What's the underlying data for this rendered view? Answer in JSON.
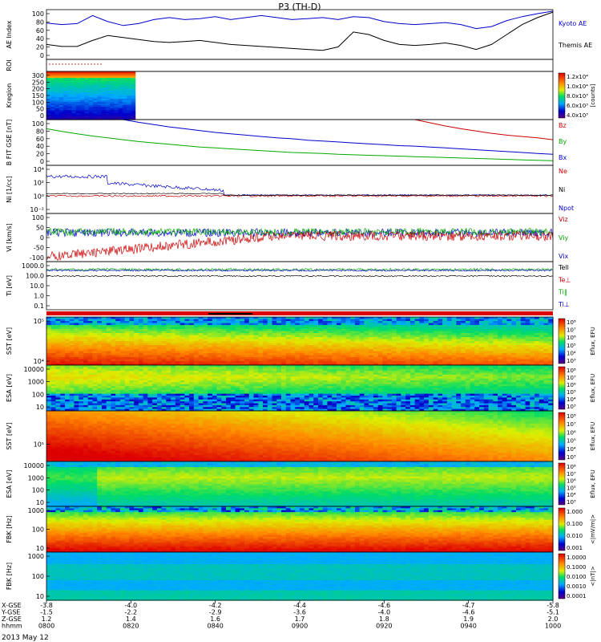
{
  "title": "P3 (TH-D)",
  "date_label": "2013 May 12",
  "chart_data": [
    {
      "type": "line",
      "id": "ae",
      "ylabel": "AE Index",
      "yticks": [
        "100",
        "80",
        "60",
        "40",
        "20",
        "0"
      ],
      "ylim": [
        0,
        100
      ],
      "series": [
        {
          "name": "Kyoto AE",
          "color": "#0000cc",
          "values": [
            73,
            70,
            72,
            88,
            76,
            68,
            72,
            80,
            84,
            80,
            82,
            86,
            80,
            84,
            88,
            84,
            80,
            82,
            84,
            80,
            86,
            84,
            76,
            72,
            70,
            72,
            74,
            70,
            62,
            66,
            78,
            86,
            92,
            97
          ]
        },
        {
          "name": "Themis AE",
          "color": "#000000",
          "values": [
            30,
            26,
            26,
            38,
            48,
            44,
            40,
            36,
            34,
            36,
            38,
            34,
            30,
            28,
            26,
            24,
            22,
            20,
            18,
            25,
            55,
            50,
            38,
            30,
            28,
            30,
            33,
            28,
            20,
            30,
            50,
            70,
            84,
            95
          ]
        }
      ]
    },
    {
      "type": "line",
      "id": "roi",
      "ylabel": "ROI"
    },
    {
      "type": "heatmap",
      "id": "kregion",
      "ylabel": "Kregion",
      "yticks": [
        "300",
        "250",
        "200",
        "150",
        "100",
        "50",
        "0"
      ],
      "colorbar_ticks": [
        "1.2x10⁴",
        "1.0x10⁴",
        "8.0x10³",
        "6.0x10³",
        "4.0x10³"
      ],
      "colorbar_label": "[counts]"
    },
    {
      "type": "line",
      "id": "bfield",
      "ylabel": "B FIT GSE [nT]",
      "yticks": [
        "100",
        "80",
        "60",
        "40",
        "20",
        "0"
      ],
      "ylim": [
        0,
        100
      ],
      "series": [
        {
          "name": "Bz",
          "color": "#cc0000",
          "values": [
            null,
            null,
            null,
            null,
            null,
            null,
            null,
            null,
            null,
            null,
            null,
            null,
            null,
            null,
            null,
            null,
            null,
            null,
            null,
            null,
            null,
            null,
            null,
            null,
            100,
            93,
            86,
            80,
            75,
            70,
            66,
            63,
            60,
            56
          ]
        },
        {
          "name": "By",
          "color": "#00aa00",
          "values": [
            80,
            74,
            69,
            64,
            60,
            56,
            52,
            49,
            46,
            43,
            40,
            38,
            36,
            34,
            32,
            30,
            28,
            27,
            26,
            24,
            23,
            22,
            21,
            20,
            19,
            18,
            17,
            16,
            15,
            14,
            13,
            12,
            11,
            10
          ]
        },
        {
          "name": "Bx",
          "color": "#0000cc",
          "values": [
            null,
            null,
            null,
            null,
            null,
            100,
            94,
            89,
            84,
            80,
            76,
            72,
            69,
            66,
            63,
            60,
            58,
            55,
            53,
            51,
            49,
            47,
            45,
            43,
            42,
            40,
            38,
            36,
            34,
            32,
            30,
            28,
            26,
            24
          ]
        }
      ]
    },
    {
      "type": "line",
      "id": "density",
      "ylabel": "Ni [1/cc]",
      "yticks": [
        "10⁴",
        "10²",
        "10⁰",
        "10⁻²"
      ],
      "series_labels": [
        {
          "name": "Ne",
          "color": "#cc0000"
        },
        {
          "name": "Ni",
          "color": "#000000"
        },
        {
          "name": "Npot",
          "color": "#0000cc"
        }
      ]
    },
    {
      "type": "line",
      "id": "velocity",
      "ylabel": "Vi [km/s]",
      "yticks": [
        "100",
        "50",
        "0",
        "-50",
        "-100"
      ],
      "ylim": [
        -150,
        100
      ],
      "series_labels": [
        {
          "name": "Viz",
          "color": "#cc0000"
        },
        {
          "name": "Viy",
          "color": "#00aa00"
        },
        {
          "name": "Vix",
          "color": "#0000cc"
        }
      ]
    },
    {
      "type": "line",
      "id": "temperature",
      "ylabel": "Ti [eV]",
      "yticks": [
        "1000.0",
        "100.0",
        "10.0",
        "1.0",
        "0.1"
      ],
      "series_labels": [
        {
          "name": "Tell",
          "color": "#000000"
        },
        {
          "name": "Te⊥",
          "color": "#cc0000"
        },
        {
          "name": "Ti‖",
          "color": "#00aa00"
        },
        {
          "name": "Ti⊥",
          "color": "#0000cc"
        }
      ]
    },
    {
      "type": "heatmap",
      "id": "sst_e",
      "ylabel": "SST [eV]",
      "yticks": [
        "10⁵",
        "10⁴"
      ],
      "colorbar_ticks": [
        "10⁸",
        "10⁷",
        "10⁶",
        "10⁵",
        "10⁴",
        "10³"
      ],
      "colorbar_label": "Eflux, EFU"
    },
    {
      "type": "heatmap",
      "id": "esa_e",
      "ylabel": "ESA [eV]",
      "yticks": [
        "10000",
        "1000",
        "100",
        "10"
      ],
      "colorbar_ticks": [
        "10⁸",
        "10⁷",
        "10⁶",
        "10⁵",
        "10⁴",
        "10³"
      ],
      "colorbar_label": "Eflux, EFU"
    },
    {
      "type": "heatmap",
      "id": "sst_i",
      "ylabel": "SST [eV]",
      "yticks": [
        "10⁵"
      ],
      "colorbar_ticks": [
        "10⁸",
        "10⁷",
        "10⁶",
        "10⁵",
        "10⁴",
        "10³"
      ],
      "colorbar_label": "Eflux, EFU"
    },
    {
      "type": "heatmap",
      "id": "esa_i",
      "ylabel": "ESA [eV]",
      "yticks": [
        "10000",
        "1000",
        "100",
        "10"
      ],
      "colorbar_ticks": [
        "10⁸",
        "10⁷",
        "10⁶",
        "10⁵",
        "10⁴",
        "10³"
      ],
      "colorbar_label": "Eflux, EFU"
    },
    {
      "type": "heatmap",
      "id": "fbk_e",
      "ylabel": "FBK [Hz]",
      "yticks": [
        "1000",
        "100",
        "10"
      ],
      "colorbar_ticks": [
        "1.000",
        "0.100",
        "0.010",
        "0.001"
      ],
      "colorbar_label": "<|mV/m|>"
    },
    {
      "type": "heatmap",
      "id": "fbk_b",
      "ylabel": "FBK [Hz]",
      "yticks": [
        "1000",
        "100",
        "10"
      ],
      "colorbar_ticks": [
        "1.0000",
        "0.1000",
        "0.0100",
        "0.0010",
        "0.0001"
      ],
      "colorbar_label": "<|nT|>"
    }
  ],
  "xaxis": {
    "row_labels": [
      "X-GSE",
      "Y-GSE",
      "Z-GSE",
      "hhmm"
    ],
    "columns": [
      [
        "-3.8",
        "-1.5",
        "1.2",
        "0800"
      ],
      [
        "-4.0",
        "-2.2",
        "1.4",
        "0820"
      ],
      [
        "-4.2",
        "-2.9",
        "1.6",
        "0840"
      ],
      [
        "-4.4",
        "-3.6",
        "1.7",
        "0900"
      ],
      [
        "-4.6",
        "-4.0",
        "1.8",
        "0920"
      ],
      [
        "-4.7",
        "-4.6",
        "1.9",
        "0940"
      ],
      [
        "-5.8",
        "-5.1",
        "2.0",
        "1000"
      ]
    ]
  }
}
